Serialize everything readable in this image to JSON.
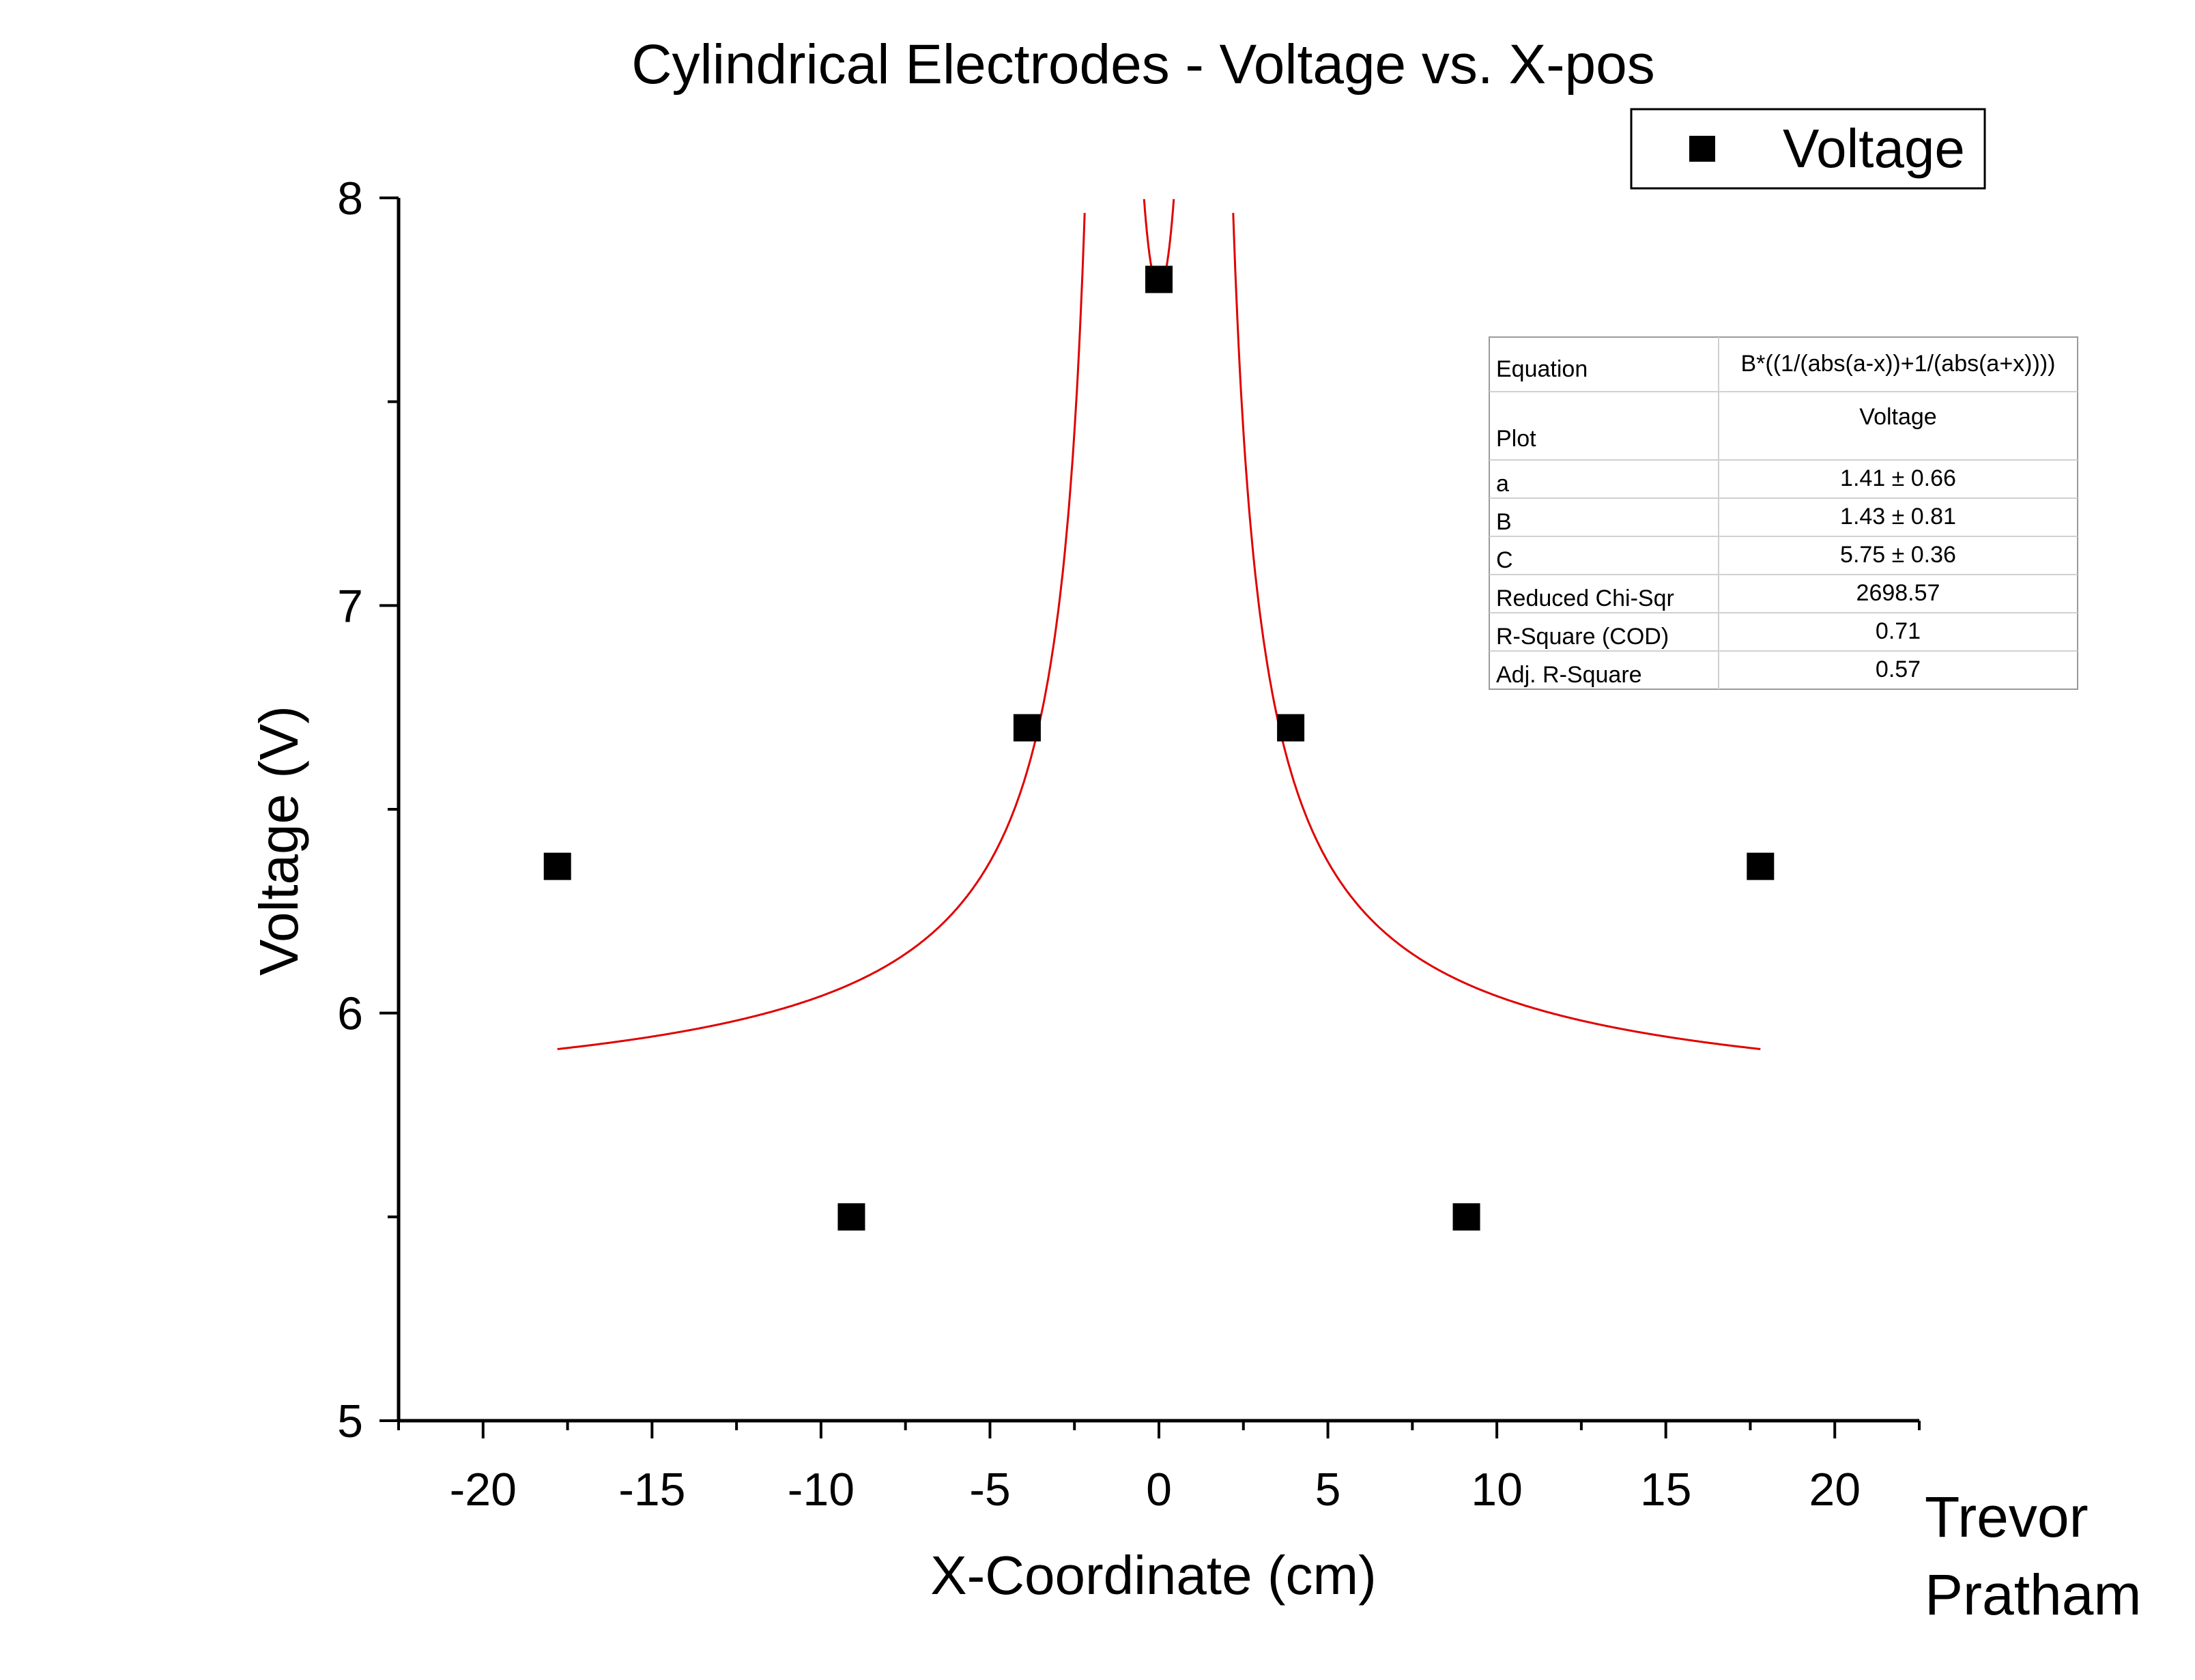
{
  "chart_data": {
    "type": "scatter",
    "title": "Cylindrical Electrodes - Voltage vs. X-pos",
    "xlabel": "X-Coordinate (cm)",
    "ylabel": "Voltage (V)",
    "xlim": [
      -22.5,
      22.5
    ],
    "ylim": [
      5,
      8
    ],
    "xticks": [
      -20,
      -15,
      -10,
      -5,
      0,
      5,
      10,
      15,
      20
    ],
    "xtick_labels": [
      "-20",
      "-15",
      "-10",
      "-5",
      "0",
      "5",
      "10",
      "15",
      "20"
    ],
    "yticks": [
      5,
      6,
      7,
      8
    ],
    "ytick_labels": [
      "5",
      "6",
      "7",
      "8"
    ],
    "grid": false,
    "legend_position": "top-right",
    "series": [
      {
        "name": "Voltage",
        "marker": "square",
        "color": "#000000",
        "x": [
          -17.8,
          -9.1,
          -3.9,
          0,
          3.9,
          9.1,
          17.8
        ],
        "y": [
          6.36,
          5.5,
          6.7,
          7.8,
          6.7,
          5.5,
          6.36
        ]
      }
    ],
    "fit": {
      "color": "#e00000",
      "x_range": [
        -17.8,
        17.8
      ],
      "params": {
        "a": 1.41,
        "B": 1.43,
        "C": 5.75
      }
    },
    "fit_table": {
      "rows": [
        {
          "label": "Equation",
          "value": "B*((1/(abs(a-x))+1/(abs(a+x))))"
        },
        {
          "label": "Plot",
          "value": "Voltage"
        },
        {
          "label": "a",
          "value": "1.41 ± 0.66"
        },
        {
          "label": "B",
          "value": "1.43 ± 0.81"
        },
        {
          "label": "C",
          "value": "5.75 ± 0.36"
        },
        {
          "label": "Reduced Chi-Sqr",
          "value": "2698.57"
        },
        {
          "label": "R-Square (COD)",
          "value": "0.71"
        },
        {
          "label": "Adj. R-Square",
          "value": "0.57"
        }
      ]
    },
    "annotation": [
      "Trevor",
      "Pratham"
    ]
  }
}
